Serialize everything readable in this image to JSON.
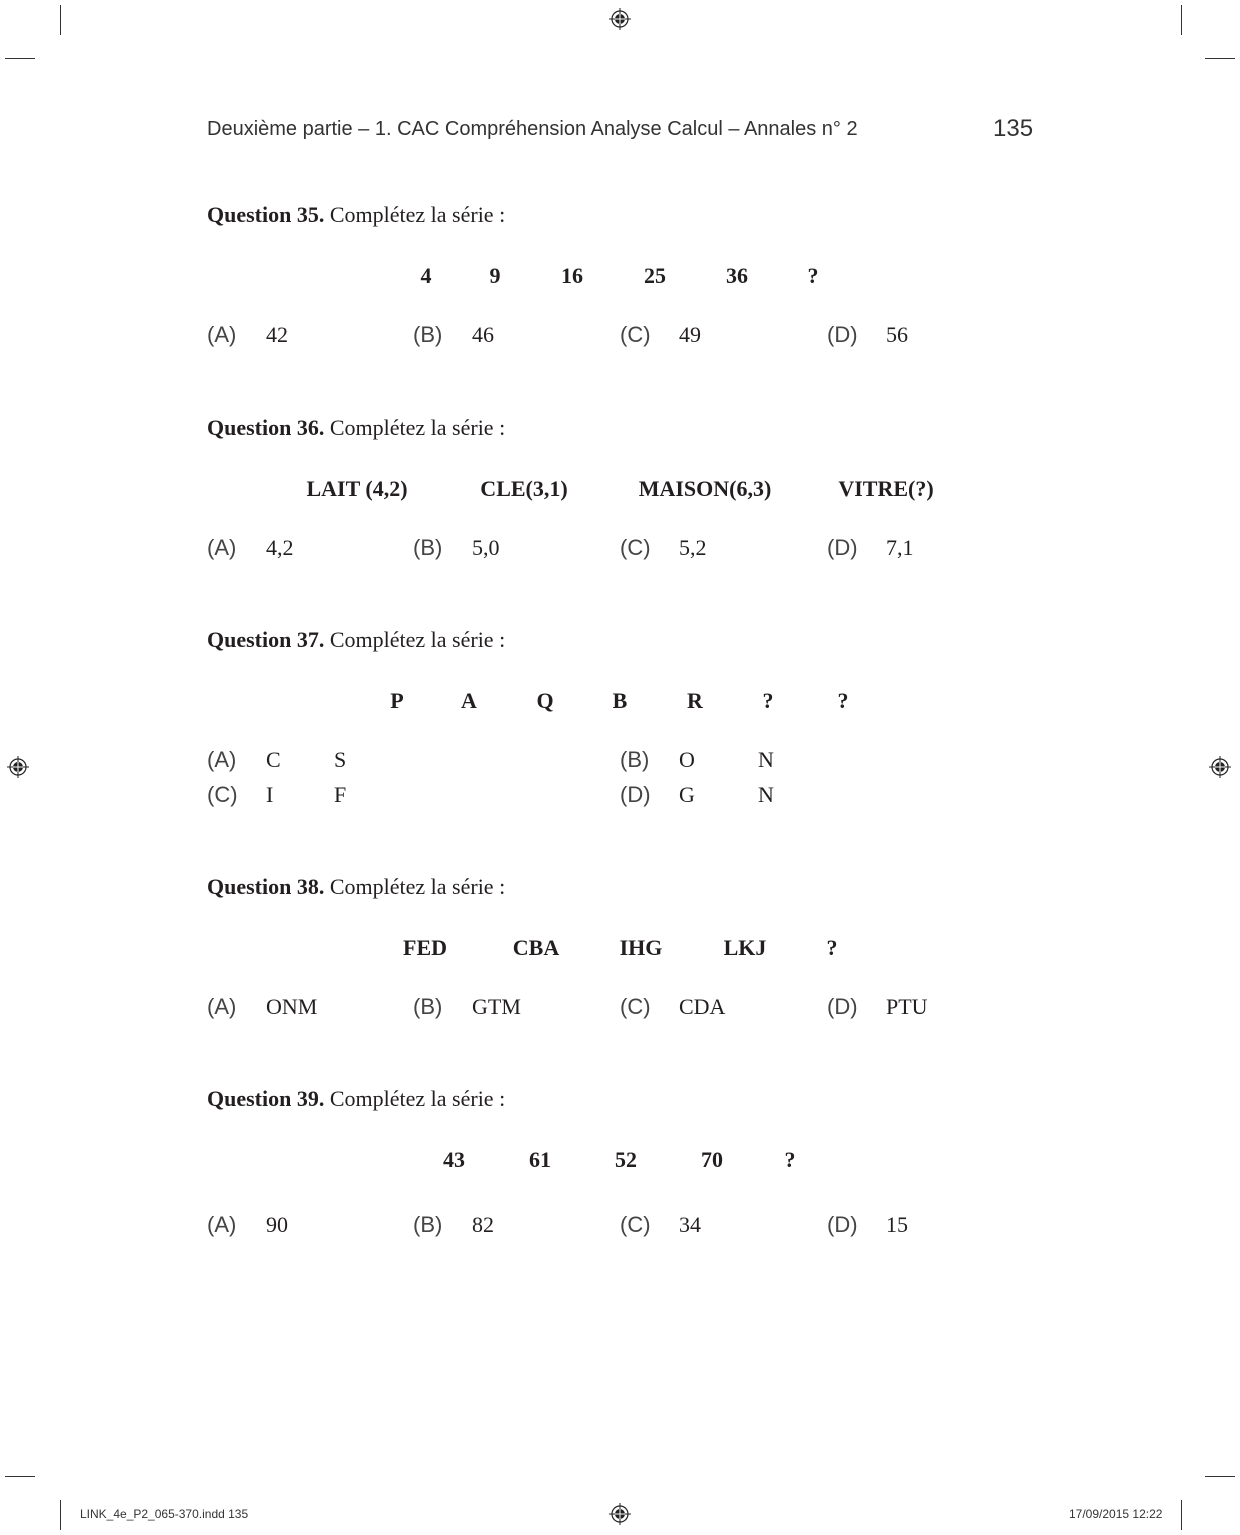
{
  "header": {
    "running_title": "Deuxième partie – 1. CAC Compréhension Analyse Calcul – Annales n° 2",
    "page_number": "135"
  },
  "questions": [
    {
      "label": "Question 35.",
      "prompt": " Complétez la série :",
      "series": [
        "4",
        "9",
        "16",
        "25",
        "36",
        "?"
      ],
      "options": [
        {
          "letter": "(A)",
          "values": [
            "42"
          ]
        },
        {
          "letter": "(B)",
          "values": [
            "46"
          ]
        },
        {
          "letter": "(C)",
          "values": [
            "49"
          ]
        },
        {
          "letter": "(D)",
          "values": [
            "56"
          ]
        }
      ]
    },
    {
      "label": "Question 36.",
      "prompt": " Complétez la série :",
      "series": [
        "LAIT (4,2)",
        "CLE(3,1)",
        "MAISON(6,3)",
        "VITRE(?)"
      ],
      "options": [
        {
          "letter": "(A)",
          "values": [
            "4,2"
          ]
        },
        {
          "letter": "(B)",
          "values": [
            "5,0"
          ]
        },
        {
          "letter": "(C)",
          "values": [
            "5,2"
          ]
        },
        {
          "letter": "(D)",
          "values": [
            "7,1"
          ]
        }
      ]
    },
    {
      "label": "Question 37.",
      "prompt": " Complétez la série :",
      "series": [
        "P",
        "A",
        "Q",
        "B",
        "R",
        "?",
        "?"
      ],
      "options": [
        {
          "letter": "(A)",
          "values": [
            "C",
            "S"
          ]
        },
        {
          "letter": "(B)",
          "values": [
            "O",
            "N"
          ]
        },
        {
          "letter": "(C)",
          "values": [
            "I",
            "F"
          ]
        },
        {
          "letter": "(D)",
          "values": [
            "G",
            "N"
          ]
        }
      ]
    },
    {
      "label": "Question 38.",
      "prompt": " Complétez la série :",
      "series": [
        "FED",
        "CBA",
        "IHG",
        "LKJ",
        "?"
      ],
      "options": [
        {
          "letter": "(A)",
          "values": [
            "ONM"
          ]
        },
        {
          "letter": "(B)",
          "values": [
            "GTM"
          ]
        },
        {
          "letter": "(C)",
          "values": [
            "CDA"
          ]
        },
        {
          "letter": "(D)",
          "values": [
            "PTU"
          ]
        }
      ]
    },
    {
      "label": "Question 39.",
      "prompt": " Complétez la série :",
      "series": [
        "43",
        "61",
        "52",
        "70",
        "?"
      ],
      "options": [
        {
          "letter": "(A)",
          "values": [
            "90"
          ]
        },
        {
          "letter": "(B)",
          "values": [
            "82"
          ]
        },
        {
          "letter": "(C)",
          "values": [
            "34"
          ]
        },
        {
          "letter": "(D)",
          "values": [
            "15"
          ]
        }
      ]
    }
  ],
  "footer": {
    "file": "LINK_4e_P2_065-370.indd   135",
    "date": "17/09/2015   12:22"
  }
}
